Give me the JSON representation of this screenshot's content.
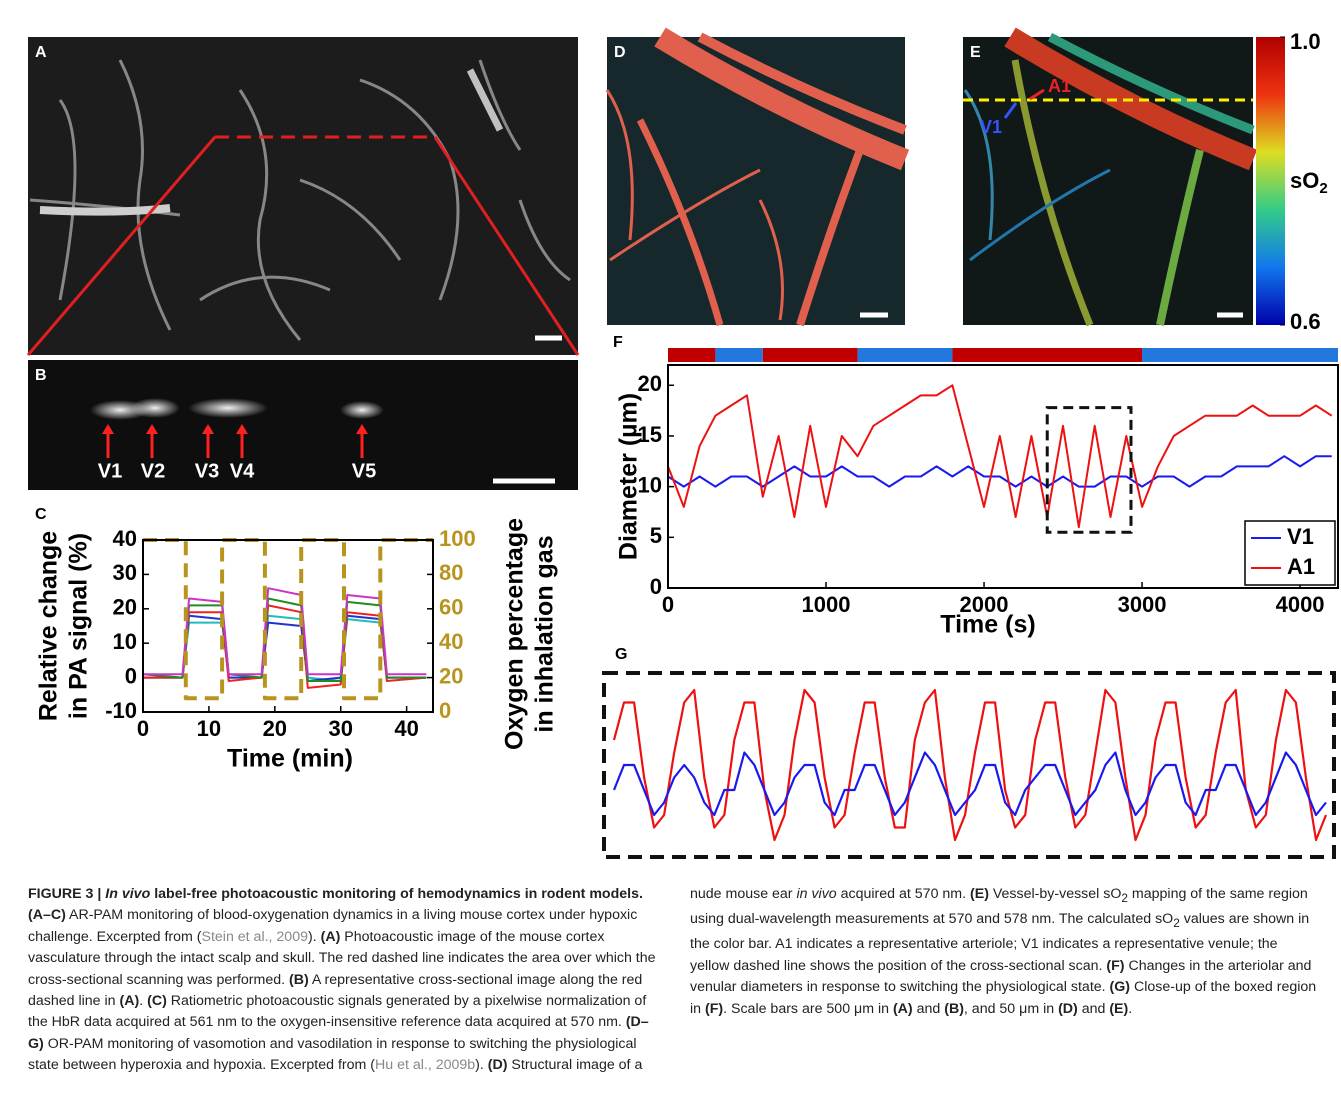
{
  "panels": {
    "A": {
      "label": "A"
    },
    "B": {
      "label": "B",
      "arrows": [
        "V1",
        "V2",
        "V3",
        "V4",
        "V5"
      ]
    },
    "C": {
      "label": "C",
      "chart": {
        "type": "line",
        "xlabel": "Time (min)",
        "ylabel": [
          "Relative change",
          "in PA signal (%)"
        ],
        "y2label": [
          "Oxygen percentage",
          "in inhalation gas"
        ],
        "xlim": [
          0,
          44
        ],
        "xticks": [
          0,
          10,
          20,
          30,
          40
        ],
        "ylim": [
          -10,
          40
        ],
        "yticks": [
          -10,
          0,
          10,
          20,
          30,
          40
        ],
        "y2lim": [
          0,
          100
        ],
        "y2ticks": [
          0,
          20,
          40,
          60,
          80,
          100
        ],
        "y2color": "#b8941f",
        "series": [
          {
            "color": "#22bbbb",
            "x": [
              0,
              6,
              7,
              12,
              13,
              18,
              19,
              24,
              25,
              30,
              31,
              36,
              37,
              43
            ],
            "values": [
              0,
              0,
              16,
              16,
              0,
              0,
              18,
              17,
              0,
              -1,
              17,
              16,
              0,
              0
            ]
          },
          {
            "color": "#2233cc",
            "x": [
              0,
              6,
              7,
              12,
              13,
              18,
              19,
              24,
              25,
              30,
              31,
              36,
              37,
              43
            ],
            "values": [
              0,
              0,
              18,
              17,
              0,
              0,
              16,
              15,
              -1,
              0,
              18,
              17,
              0,
              0
            ]
          },
          {
            "color": "#ee2222",
            "x": [
              0,
              6,
              7,
              12,
              13,
              18,
              19,
              24,
              25,
              30,
              31,
              36,
              37,
              43
            ],
            "values": [
              0,
              0,
              19,
              19,
              -1,
              0,
              21,
              19,
              -3,
              -2,
              19,
              18,
              -1,
              0
            ]
          },
          {
            "color": "#228b22",
            "x": [
              0,
              6,
              7,
              12,
              13,
              18,
              19,
              24,
              25,
              30,
              31,
              36,
              37,
              43
            ],
            "values": [
              1,
              0,
              21,
              21,
              1,
              0,
              23,
              21,
              -1,
              -1,
              22,
              21,
              0,
              0
            ]
          },
          {
            "color": "#cc33cc",
            "x": [
              0,
              6,
              7,
              12,
              13,
              18,
              19,
              24,
              25,
              30,
              31,
              36,
              37,
              43
            ],
            "values": [
              1,
              1,
              23,
              22,
              1,
              1,
              26,
              24,
              1,
              1,
              24,
              23,
              1,
              1
            ]
          },
          {
            "color": "#b8941f",
            "axis": "y2",
            "dashed": true,
            "x": [
              0,
              6.5,
              6.5,
              12,
              12,
              18.5,
              18.5,
              24,
              24,
              30.5,
              30.5,
              36,
              36,
              44
            ],
            "values": [
              100,
              100,
              8,
              8,
              100,
              100,
              8,
              8,
              100,
              100,
              8,
              8,
              100,
              100
            ]
          }
        ]
      }
    },
    "D": {
      "label": "D"
    },
    "E": {
      "label": "E",
      "annotations": [
        "A1",
        "V1"
      ],
      "colorbar": {
        "lim": [
          0.6,
          1.0
        ],
        "ticks": [
          {
            "value": 1,
            "label": "1.0"
          },
          0.6
        ],
        "label": [
          "sO",
          "2"
        ]
      }
    },
    "F": {
      "label": "F",
      "chart": {
        "type": "line",
        "xlabel": "Time (s)",
        "ylabel": "Diameter (µm)",
        "xlim": [
          0,
          4240
        ],
        "xticks": [
          0,
          1000,
          2000,
          3000,
          4000
        ],
        "ylim": [
          0,
          22
        ],
        "yticks": [
          0,
          5,
          10,
          15,
          20
        ],
        "legend": "lower right",
        "state_bar": {
          "edges": [
            0,
            300,
            600,
            1200,
            1800,
            3000,
            4240
          ],
          "colors": [
            "#c00000",
            "#2277dd",
            "#c00000",
            "#2277dd",
            "#c00000",
            "#2277dd"
          ]
        },
        "zoom_box": {
          "x": [
            2400,
            2930
          ],
          "y": [
            5.5,
            17.8
          ]
        },
        "series": [
          {
            "name": "V1",
            "color": "#1a1aee",
            "x": [
              0,
              100,
              200,
              300,
              400,
              500,
              600,
              700,
              800,
              900,
              1000,
              1100,
              1200,
              1300,
              1400,
              1500,
              1600,
              1700,
              1800,
              1900,
              2000,
              2100,
              2200,
              2300,
              2400,
              2500,
              2600,
              2700,
              2800,
              2900,
              3000,
              3100,
              3200,
              3300,
              3400,
              3500,
              3600,
              3700,
              3800,
              3900,
              4000,
              4100,
              4200
            ],
            "values": [
              11,
              10,
              11,
              10,
              11,
              11,
              10,
              11,
              12,
              11,
              11,
              12,
              11,
              11,
              10,
              11,
              11,
              12,
              11,
              12,
              11,
              11,
              10,
              11,
              10,
              11,
              10,
              10,
              11,
              11,
              10,
              11,
              11,
              10,
              11,
              11,
              12,
              12,
              12,
              13,
              12,
              13,
              13
            ]
          },
          {
            "name": "A1",
            "color": "#ee1111",
            "x": [
              0,
              100,
              200,
              300,
              400,
              500,
              600,
              700,
              800,
              900,
              1000,
              1100,
              1200,
              1300,
              1400,
              1500,
              1600,
              1700,
              1800,
              1900,
              2000,
              2100,
              2200,
              2300,
              2400,
              2500,
              2600,
              2700,
              2800,
              2900,
              3000,
              3100,
              3200,
              3300,
              3400,
              3500,
              3600,
              3700,
              3800,
              3900,
              4000,
              4100,
              4200
            ],
            "values": [
              12,
              8,
              14,
              17,
              18,
              19,
              9,
              15,
              7,
              16,
              8,
              15,
              13,
              16,
              17,
              18,
              19,
              19,
              20,
              14,
              8,
              15,
              7,
              15,
              7,
              16,
              6,
              16,
              7,
              15,
              8,
              12,
              15,
              16,
              17,
              17,
              17,
              18,
              17,
              17,
              17,
              18,
              17
            ]
          }
        ]
      }
    },
    "G": {
      "label": "G",
      "chart": {
        "type": "line",
        "series": [
          {
            "color": "#ee1111",
            "values": [
              14,
              17,
              17,
              11,
              7,
              8,
              13,
              17,
              18,
              11,
              7,
              8,
              14,
              17,
              17,
              10,
              6,
              8,
              14,
              18,
              17,
              11,
              7,
              8,
              13,
              17,
              17,
              11,
              7,
              7,
              14,
              17,
              18,
              11,
              6,
              8,
              13,
              17,
              17,
              10,
              7,
              8,
              14,
              17,
              17,
              11,
              7,
              8,
              13,
              18,
              17,
              11,
              6,
              8,
              14,
              17,
              17,
              11,
              7,
              8,
              13,
              17,
              18,
              10,
              7,
              8,
              14,
              18,
              17,
              11,
              6,
              8
            ]
          },
          {
            "color": "#1a1aee",
            "values": [
              10,
              12,
              12,
              10,
              8,
              9,
              11,
              12,
              11,
              9,
              8,
              10,
              10,
              13,
              12,
              10,
              8,
              9,
              11,
              12,
              12,
              9,
              8,
              10,
              10,
              12,
              12,
              10,
              8,
              9,
              11,
              13,
              12,
              10,
              8,
              9,
              10,
              12,
              12,
              9,
              8,
              10,
              11,
              12,
              12,
              10,
              8,
              9,
              10,
              12,
              13,
              10,
              8,
              9,
              11,
              12,
              12,
              9,
              8,
              10,
              10,
              12,
              12,
              10,
              8,
              9,
              11,
              13,
              12,
              10,
              8,
              9
            ]
          }
        ]
      }
    }
  },
  "caption": [
    "FIGURE 3 | ",
    "In vivo",
    " label-free photoacoustic monitoring of hemodynamics in rodent models.",
    " (A–C)",
    " AR-PAM monitoring of blood-oxygenation dynamics in a living mouse cortex under hypoxic challenge. Excerpted from (",
    "Stein et al., 2009",
    "). ",
    "(A)",
    " Photoacoustic image of the mouse cortex vasculature through the intact scalp and skull. The red dashed line indicates the area over which the cross-sectional scanning was performed. ",
    "(B)",
    " A representative cross-sectional image along the red dashed line in ",
    "(A)",
    ". ",
    "(C)",
    " Ratiometric photoacoustic signals generated by a pixelwise normalization of the HbR data acquired at 561 nm to the oxygen-insensitive reference data acquired at 570 nm. ",
    "(D–G)",
    " OR-PAM monitoring of vasomotion and vasodilation in response to switching the physiological state between hyperoxia and hypoxia. Excerpted from (",
    "Hu et al., 2009b",
    "). ",
    "(D)",
    " Structural image of a nude mouse ear ",
    "in vivo",
    " acquired at 570 nm. ",
    "(E)",
    " Vessel-by-vessel sO",
    "2",
    " mapping of the same region using dual-wavelength measurements at 570 and 578 nm. The calculated sO",
    "2",
    " values are shown in the color bar. A1 indicates a representative arteriole; V1 indicates a representative venule; the yellow dashed line shows the position of the cross-sectional scan. ",
    "(F)",
    " Changes in the arteriolar and venular diameters in response to switching the physiological state. ",
    "(G)",
    " Close-up of the boxed region in ",
    "(F)",
    ". Scale bars are 500 μm in ",
    "(A)",
    " and ",
    "(B)",
    ", and 50 μm in ",
    "(D)",
    " and ",
    "(E)",
    "."
  ]
}
